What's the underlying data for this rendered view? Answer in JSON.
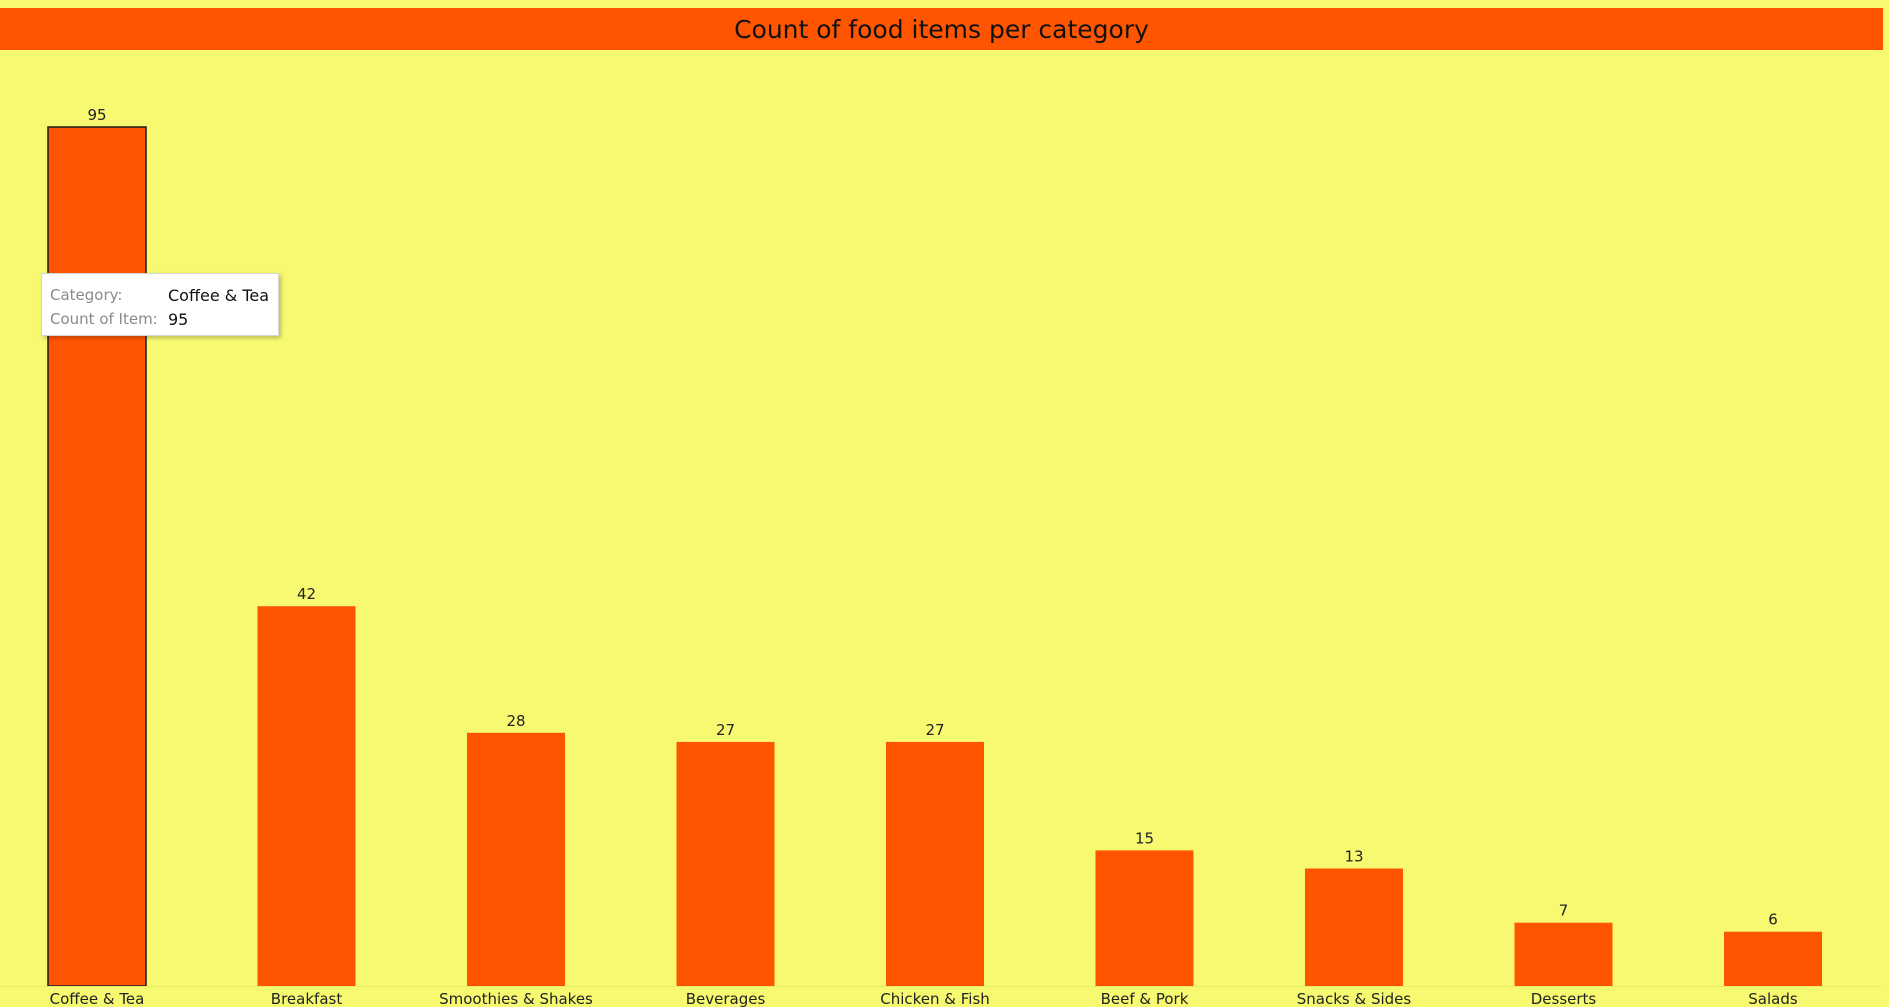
{
  "colors": {
    "background": "#f7fa70",
    "bar": "#ff5500",
    "title_bar": "#ff5500"
  },
  "tooltip": {
    "rows": [
      {
        "key": "Category:",
        "value": "Coffee & Tea"
      },
      {
        "key": "Count of Item:",
        "value": "95"
      }
    ]
  },
  "chart_data": {
    "type": "bar",
    "title": "Count of food items per category",
    "xlabel": "",
    "ylabel": "",
    "ylim": [
      0,
      95
    ],
    "grid": false,
    "categories": [
      "Coffee & Tea",
      "Breakfast",
      "Smoothies & Shakes",
      "Beverages",
      "Chicken & Fish",
      "Beef & Pork",
      "Snacks & Sides",
      "Desserts",
      "Salads"
    ],
    "values": [
      95,
      42,
      28,
      27,
      27,
      15,
      13,
      7,
      6
    ],
    "highlighted_category": "Coffee & Tea"
  }
}
